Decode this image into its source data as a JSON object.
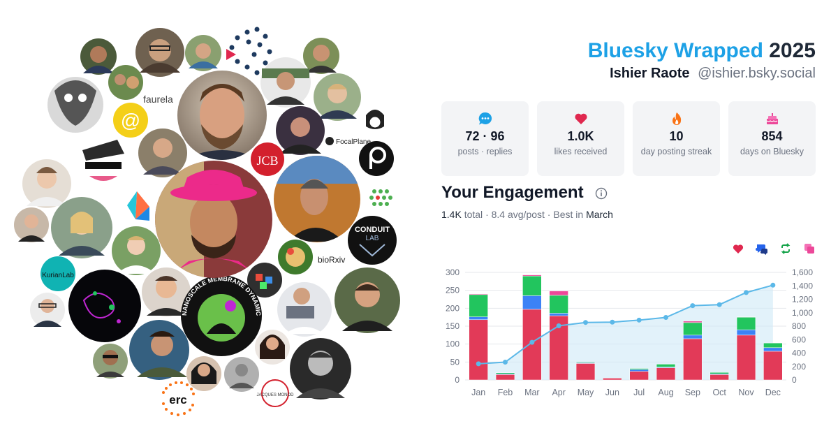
{
  "header": {
    "brand": "Bluesky Wrapped",
    "year": "2025",
    "user_name": "Ishier Raote",
    "user_handle": "@ishier.bsky.social"
  },
  "stats": [
    {
      "icon": "speech-bubble-icon",
      "value": "72 · 96",
      "label": "posts · replies",
      "color": "#1da1e6"
    },
    {
      "icon": "heart-icon",
      "value": "1.0K",
      "label": "likes received",
      "color": "#e0284f"
    },
    {
      "icon": "flame-icon",
      "value": "10",
      "label": "day posting streak",
      "color": "#f97316"
    },
    {
      "icon": "cake-icon",
      "value": "854",
      "label": "days on Bluesky",
      "color": "#ec4899"
    }
  ],
  "engagement": {
    "title": "Your Engagement",
    "total_value": "1.4K",
    "total_word": "total",
    "sep1": "·",
    "avg": "8.4 avg/post",
    "sep2": "·",
    "best_prefix": "Best in",
    "best_month": "March",
    "legend": [
      {
        "icon": "heart-icon",
        "color": "#e0284f"
      },
      {
        "icon": "reply-icon",
        "color": "#2563eb"
      },
      {
        "icon": "repost-icon",
        "color": "#16a34a"
      },
      {
        "icon": "quote-icon",
        "color": "#ec4899"
      }
    ]
  },
  "avatar_cloud": {
    "labels": {
      "faurela": "faurela",
      "jcb": "JCB",
      "focalplane": "FocalPlane",
      "biorxiv": "bioRxiv",
      "kurian": "KurianLab",
      "conduit_top": "CONDUIT",
      "conduit_lab": "LAB",
      "nanoscale": "NANOSCALE MEMBRANE DYNAMICS LAB",
      "erc": "erc",
      "jacques_monod": "JACQUES MONOD",
      "at": "@"
    }
  },
  "chart_data": {
    "type": "bar",
    "categories": [
      "Jan",
      "Feb",
      "Mar",
      "Apr",
      "May",
      "Jun",
      "Jul",
      "Aug",
      "Sep",
      "Oct",
      "Nov",
      "Dec"
    ],
    "series": [
      {
        "name": "likes",
        "color": "#e23a58",
        "values": [
          168,
          15,
          197,
          179,
          46,
          5,
          24,
          34,
          115,
          15,
          125,
          80
        ]
      },
      {
        "name": "replies",
        "color": "#3b82f6",
        "values": [
          8,
          2,
          38,
          7,
          2,
          0,
          5,
          2,
          10,
          2,
          15,
          10
        ]
      },
      {
        "name": "reposts",
        "color": "#22c55e",
        "values": [
          62,
          3,
          55,
          50,
          2,
          0,
          3,
          8,
          35,
          4,
          35,
          13
        ]
      },
      {
        "name": "quotes",
        "color": "#ec4899",
        "values": [
          2,
          0,
          3,
          12,
          0,
          0,
          0,
          0,
          4,
          0,
          1,
          0
        ]
      }
    ],
    "cumulative": [
      240,
      265,
      560,
      805,
      855,
      860,
      890,
      930,
      1105,
      1120,
      1300,
      1410
    ],
    "ylim_left": [
      0,
      300
    ],
    "yticks_left": [
      0,
      50,
      100,
      150,
      200,
      250,
      300
    ],
    "ylim_right": [
      0,
      1600
    ],
    "yticks_right": [
      "0",
      "200",
      "400",
      "600",
      "800",
      "1,000",
      "1,200",
      "1,400",
      "1,600"
    ],
    "grid": true
  }
}
